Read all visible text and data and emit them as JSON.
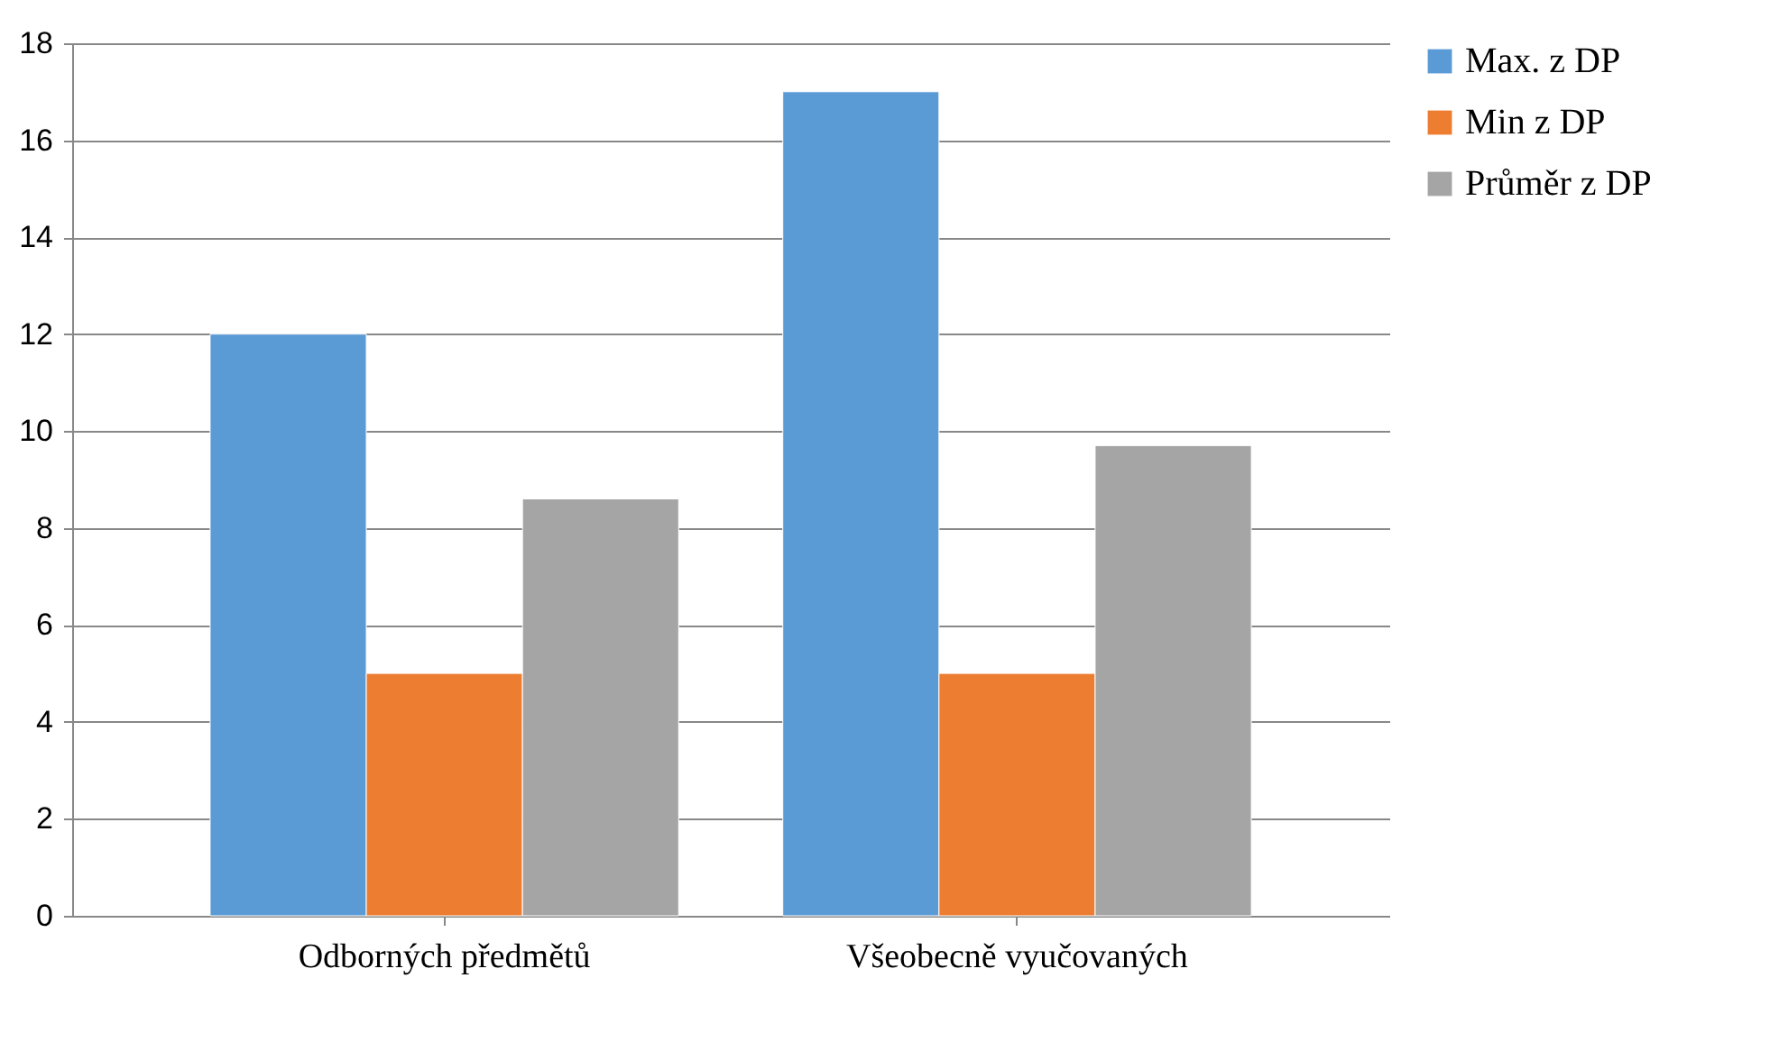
{
  "chart_data": {
    "type": "bar",
    "categories": [
      "Odborných předmětů",
      "Všeobecně vyučovaných"
    ],
    "series": [
      {
        "name": "Max. z  DP",
        "color": "#5b9bd5",
        "values": [
          12,
          17
        ]
      },
      {
        "name": "Min z DP",
        "color": "#ed7d31",
        "values": [
          5,
          5
        ]
      },
      {
        "name": "Průměr z DP",
        "color": "#a5a5a5",
        "values": [
          8.6,
          9.7
        ]
      }
    ],
    "ylim": [
      0,
      18
    ],
    "yticks": [
      0,
      2,
      4,
      6,
      8,
      10,
      12,
      14,
      16,
      18
    ],
    "grid": "y",
    "legend": "right"
  }
}
